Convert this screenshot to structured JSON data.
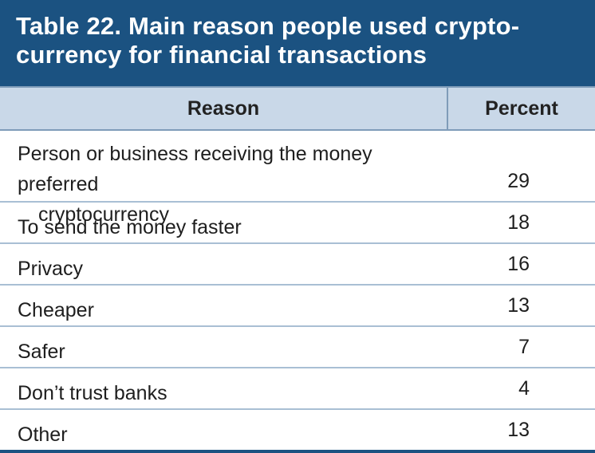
{
  "title_line1": "Table 22. Main reason people used crypto-",
  "title_line2": "currency for financial transactions",
  "header": {
    "reason": "Reason",
    "percent": "Percent"
  },
  "rows": [
    {
      "reason_line1": "Person or business receiving the money preferred",
      "reason_line2": "cryptocurrency",
      "percent": "29"
    },
    {
      "reason": "To send the money faster",
      "percent": "18"
    },
    {
      "reason": "Privacy",
      "percent": "16"
    },
    {
      "reason": "Cheaper",
      "percent": "13"
    },
    {
      "reason": "Safer",
      "percent": "7"
    },
    {
      "reason": "Don’t trust banks",
      "percent": "4"
    },
    {
      "reason": "Other",
      "percent": "13"
    }
  ]
}
